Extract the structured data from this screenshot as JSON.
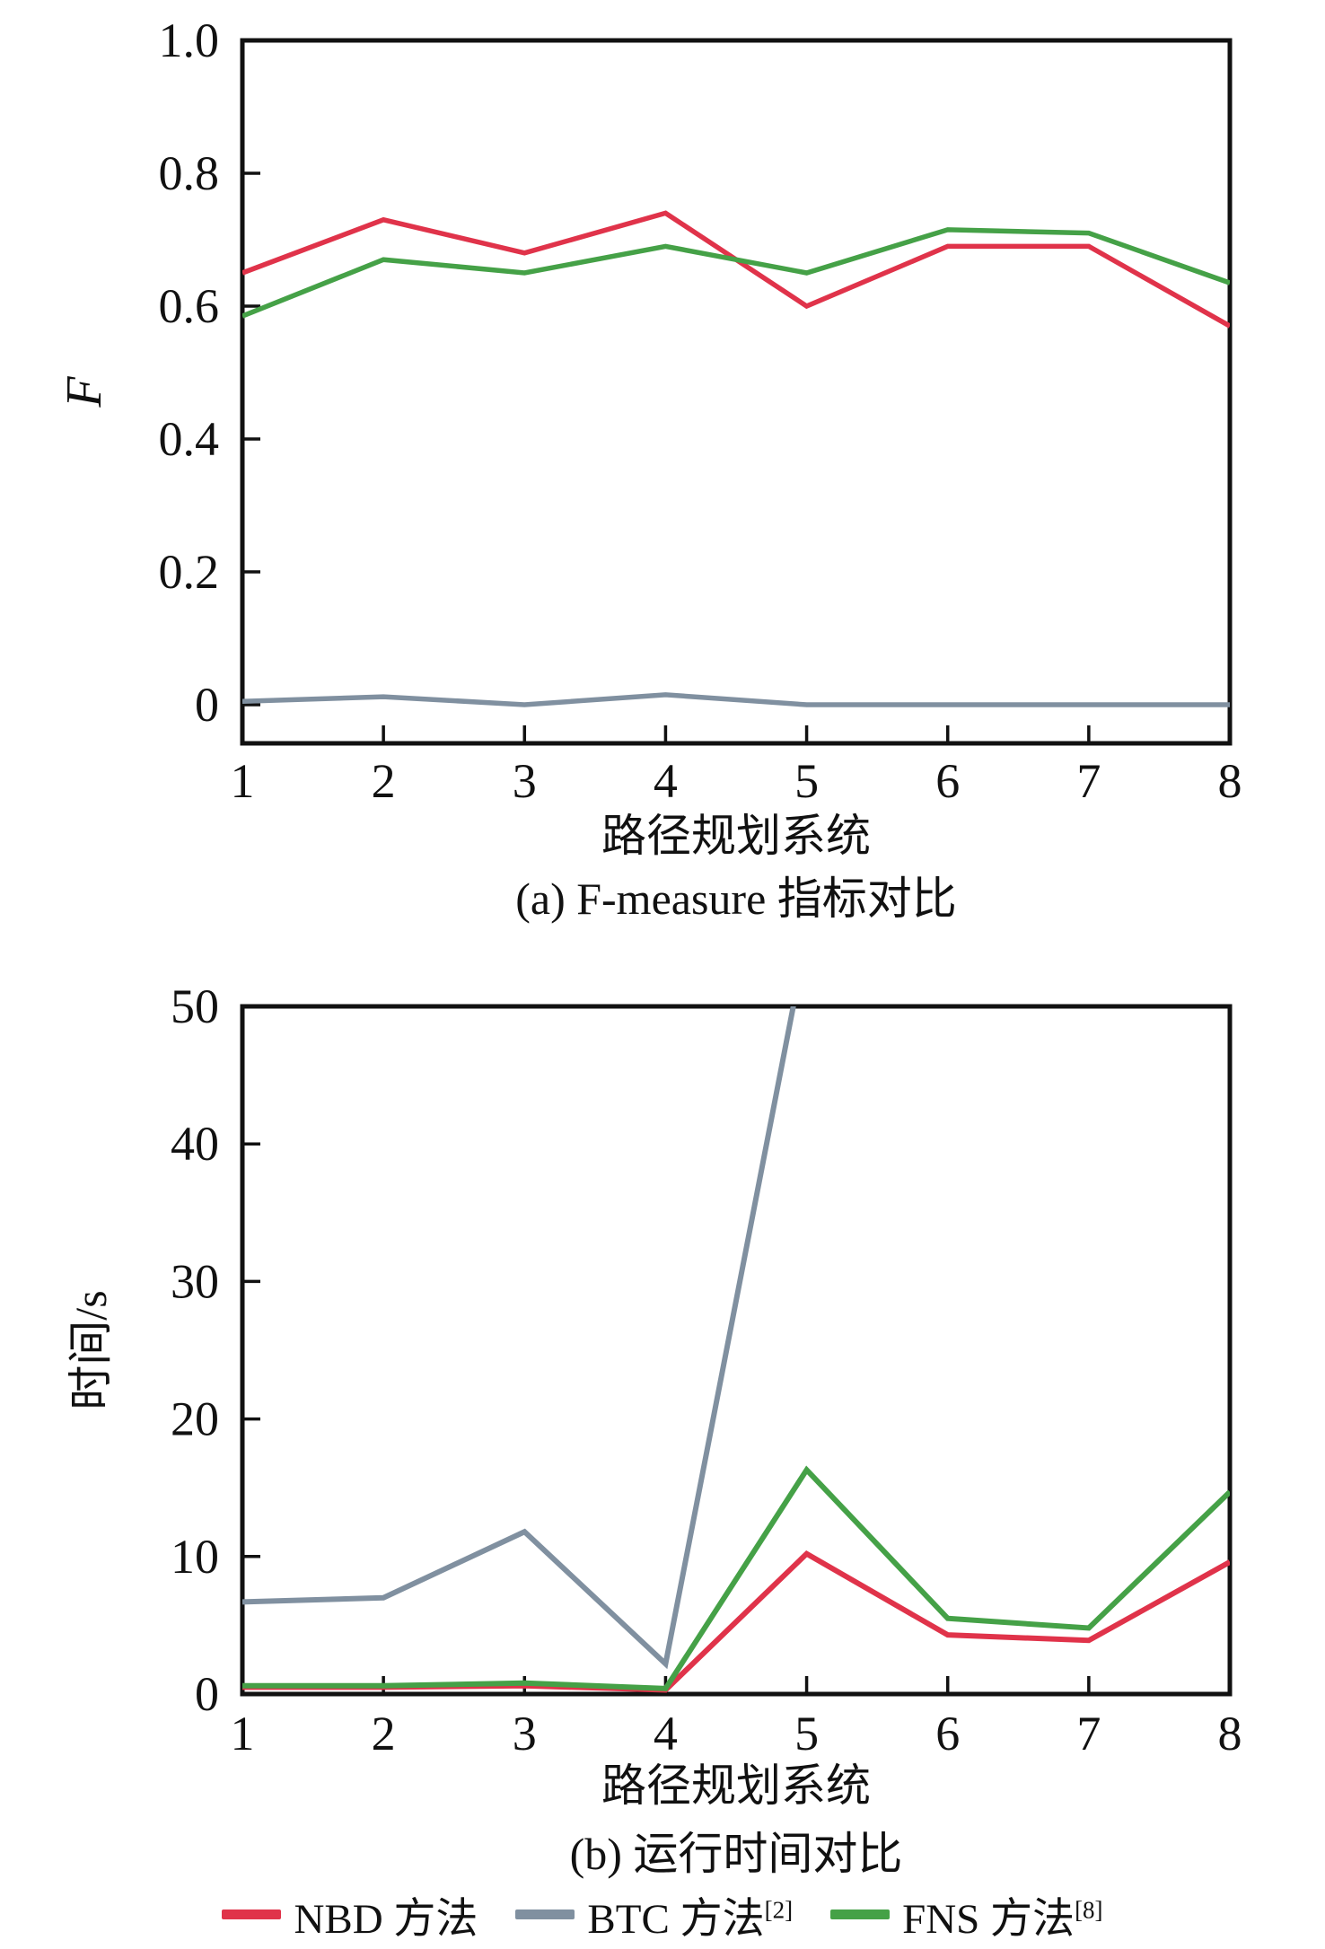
{
  "figure": {
    "background": "#ffffff",
    "text_color": "#111111",
    "axis_color": "#111111",
    "legend": {
      "position": "bottom-center",
      "items": [
        {
          "label": "NBD 方法",
          "ref": "",
          "color": "#e0334a"
        },
        {
          "label": "BTC 方法",
          "ref": "[2]",
          "color": "#8090a0"
        },
        {
          "label": "FNS 方法",
          "ref": "[8]",
          "color": "#45a147"
        }
      ]
    }
  },
  "chart_data": [
    {
      "id": "a",
      "type": "line",
      "title": "(a) F-measure 指标对比",
      "xlabel": "路径规划系统",
      "ylabel": "F",
      "x": [
        1,
        2,
        3,
        4,
        5,
        6,
        7,
        8
      ],
      "xticks": [
        1,
        2,
        3,
        4,
        5,
        6,
        7,
        8
      ],
      "xtick_labels": [
        "1",
        "2",
        "3",
        "4",
        "5",
        "6",
        "7",
        "8"
      ],
      "xlim": [
        1,
        8
      ],
      "ylim": [
        0,
        1.0
      ],
      "yticks": [
        0,
        0.2,
        0.4,
        0.6,
        0.8,
        1.0
      ],
      "ytick_labels": [
        "0",
        "0.2",
        "0.4",
        "0.6",
        "0.8",
        "1.0"
      ],
      "grid": false,
      "series": [
        {
          "name": "NBD 方法",
          "color": "#e0334a",
          "values": [
            0.65,
            0.73,
            0.68,
            0.74,
            0.6,
            0.69,
            0.69,
            0.57
          ]
        },
        {
          "name": "BTC 方法",
          "color": "#8090a0",
          "values": [
            0.005,
            0.012,
            0.0,
            0.015,
            0.0,
            0.0,
            0.0,
            0.0
          ]
        },
        {
          "name": "FNS 方法",
          "color": "#45a147",
          "values": [
            0.585,
            0.67,
            0.65,
            0.69,
            0.65,
            0.715,
            0.71,
            0.635
          ]
        }
      ]
    },
    {
      "id": "b",
      "type": "line",
      "title": "(b) 运行时间对比",
      "xlabel": "路径规划系统",
      "ylabel": "时间/s",
      "x": [
        1,
        2,
        3,
        4,
        5,
        6,
        7,
        8
      ],
      "xticks": [
        1,
        2,
        3,
        4,
        5,
        6,
        7,
        8
      ],
      "xtick_labels": [
        "1",
        "2",
        "3",
        "4",
        "5",
        "6",
        "7",
        "8"
      ],
      "xlim": [
        1,
        8
      ],
      "ylim": [
        0,
        50
      ],
      "yticks": [
        0,
        10,
        20,
        30,
        40,
        50
      ],
      "ytick_labels": [
        "0",
        "10",
        "20",
        "30",
        "40",
        "50"
      ],
      "grid": false,
      "series": [
        {
          "name": "NBD 方法",
          "color": "#e0334a",
          "values": [
            0.5,
            0.5,
            0.6,
            0.3,
            10.2,
            4.3,
            3.9,
            9.6
          ]
        },
        {
          "name": "BTC 方法",
          "color": "#8090a0",
          "values": [
            6.7,
            7.0,
            11.8,
            2.2,
            55,
            null,
            null,
            null
          ],
          "note": "rises above axis top (>50) before x=5 and exits plot; x=6..8 not visible"
        },
        {
          "name": "FNS 方法",
          "color": "#45a147",
          "values": [
            0.6,
            0.6,
            0.8,
            0.4,
            16.3,
            5.5,
            4.8,
            14.7
          ]
        }
      ]
    }
  ]
}
